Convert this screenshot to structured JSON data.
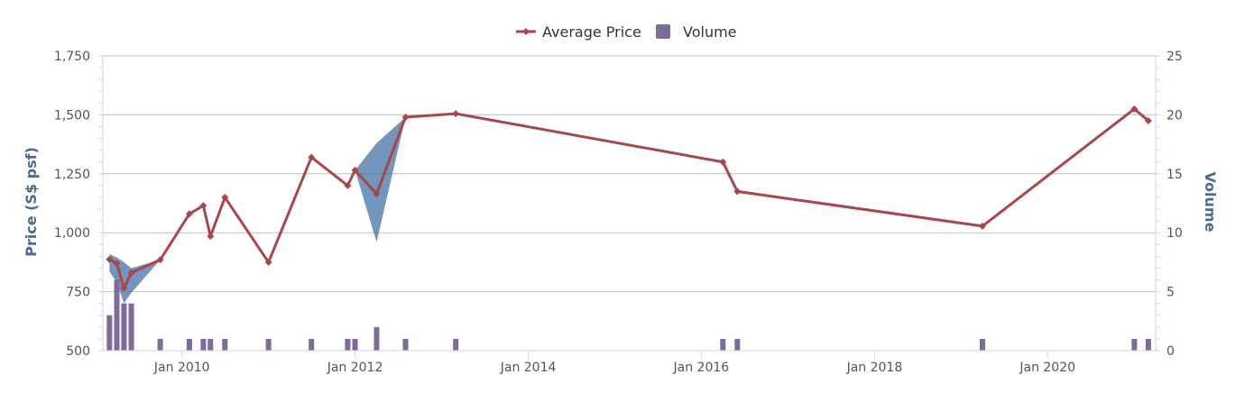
{
  "chart_data": {
    "type": "line",
    "legend": {
      "position": "top-center",
      "items": [
        "Average Price",
        "Volume"
      ]
    },
    "colors": {
      "price": "#a8474a",
      "volume": "#80699b",
      "range": "#4572a7",
      "grid": "#c0c0c0",
      "axis": "#ccd6eb"
    },
    "xaxis": {
      "type": "datetime",
      "range": [
        "2009-02-01",
        "2021-04-01"
      ],
      "ticks": [
        "2010-01-01",
        "2012-01-01",
        "2014-01-01",
        "2016-01-01",
        "2018-01-01",
        "2020-01-01"
      ],
      "tick_labels": [
        "Jan 2010",
        "Jan 2012",
        "Jan 2014",
        "Jan 2016",
        "Jan 2018",
        "Jan 2020"
      ]
    },
    "yaxis_left": {
      "title": "Price (S$ psf)",
      "range": [
        500,
        1750
      ],
      "ticks": [
        500,
        750,
        1000,
        1250,
        1500,
        1750
      ],
      "tick_labels": [
        "500",
        "750",
        "1,000",
        "1,250",
        "1,500",
        "1,750"
      ]
    },
    "yaxis_right": {
      "title": "Volume",
      "range": [
        0,
        25
      ],
      "ticks": [
        0,
        5,
        10,
        15,
        20,
        25
      ],
      "tick_labels": [
        "0",
        "5",
        "10",
        "15",
        "20",
        "25"
      ]
    },
    "series": [
      {
        "name": "Average Price",
        "type": "line",
        "points": [
          [
            "2009-03-01",
            887
          ],
          [
            "2009-04-01",
            870
          ],
          [
            "2009-05-01",
            765
          ],
          [
            "2009-06-01",
            830
          ],
          [
            "2009-10-01",
            885
          ],
          [
            "2010-02-01",
            1080
          ],
          [
            "2010-04-01",
            1115
          ],
          [
            "2010-05-01",
            985
          ],
          [
            "2010-07-01",
            1150
          ],
          [
            "2011-01-01",
            875
          ],
          [
            "2011-07-01",
            1320
          ],
          [
            "2011-12-01",
            1200
          ],
          [
            "2012-01-01",
            1265
          ],
          [
            "2012-04-01",
            1165
          ],
          [
            "2012-08-01",
            1490
          ],
          [
            "2013-03-01",
            1505
          ],
          [
            "2016-04-01",
            1300
          ],
          [
            "2016-06-01",
            1175
          ],
          [
            "2019-04-01",
            1028
          ],
          [
            "2021-01-01",
            1525
          ],
          [
            "2021-03-01",
            1475
          ]
        ]
      },
      {
        "name": "Volume",
        "type": "column",
        "points": [
          [
            "2009-03-01",
            3
          ],
          [
            "2009-04-01",
            6
          ],
          [
            "2009-05-01",
            4
          ],
          [
            "2009-06-01",
            4
          ],
          [
            "2009-10-01",
            1
          ],
          [
            "2010-02-01",
            1
          ],
          [
            "2010-04-01",
            1
          ],
          [
            "2010-05-01",
            1
          ],
          [
            "2010-07-01",
            1
          ],
          [
            "2011-01-01",
            1
          ],
          [
            "2011-07-01",
            1
          ],
          [
            "2011-12-01",
            1
          ],
          [
            "2012-01-01",
            1
          ],
          [
            "2012-04-01",
            2
          ],
          [
            "2012-08-01",
            1
          ],
          [
            "2013-03-01",
            1
          ],
          [
            "2016-04-01",
            1
          ],
          [
            "2016-06-01",
            1
          ],
          [
            "2019-04-01",
            1
          ],
          [
            "2021-01-01",
            1
          ],
          [
            "2021-03-01",
            1
          ]
        ]
      },
      {
        "type": "arearange",
        "points": [
          [
            "2009-03-01",
            835,
            910
          ],
          [
            "2009-04-01",
            790,
            895
          ],
          [
            "2009-05-01",
            700,
            875
          ],
          [
            "2009-06-01",
            745,
            850
          ],
          [
            "2009-10-01",
            885,
            885
          ],
          [
            "2012-01-01",
            1265,
            1265
          ],
          [
            "2012-04-01",
            960,
            1380
          ],
          [
            "2012-08-01",
            1490,
            1490
          ]
        ]
      }
    ]
  }
}
